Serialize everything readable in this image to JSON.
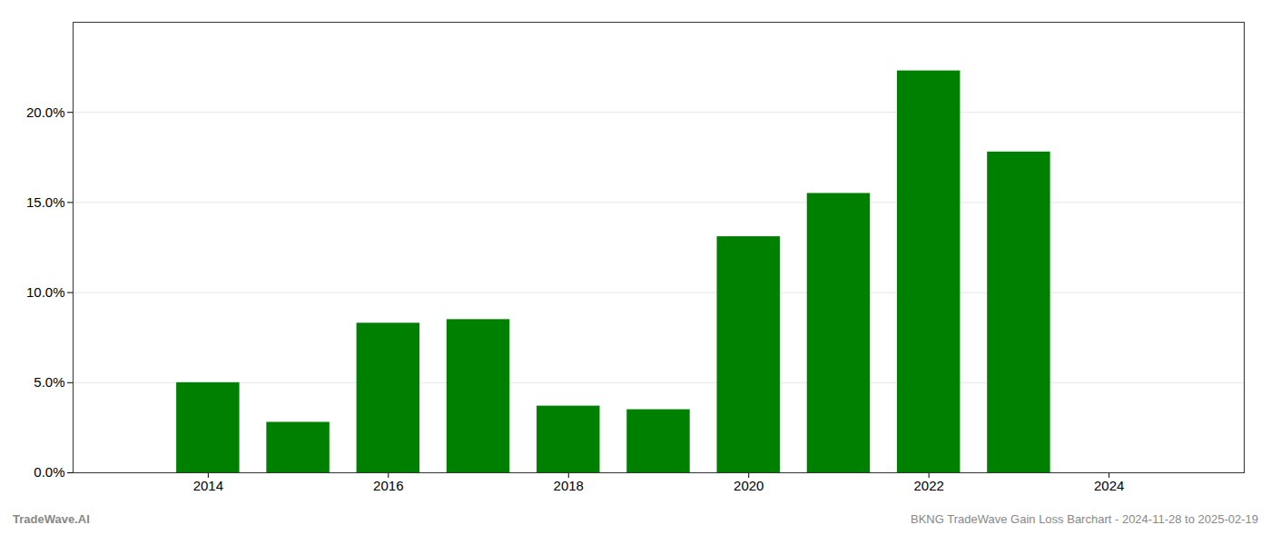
{
  "chart_data": {
    "type": "bar",
    "x": [
      2014,
      2015,
      2016,
      2017,
      2018,
      2019,
      2020,
      2021,
      2022,
      2023
    ],
    "values": [
      0.05,
      0.028,
      0.083,
      0.085,
      0.037,
      0.035,
      0.131,
      0.155,
      0.223,
      0.178
    ],
    "color": "#008000",
    "xlim": [
      2012.5,
      2025.5
    ],
    "xticks": [
      2014,
      2016,
      2018,
      2020,
      2022,
      2024
    ],
    "ylim": [
      0,
      0.25
    ],
    "yticks": [
      {
        "value": 0.0,
        "label": "0.0%"
      },
      {
        "value": 0.05,
        "label": "5.0%"
      },
      {
        "value": 0.1,
        "label": "10.0%"
      },
      {
        "value": 0.15,
        "label": "15.0%"
      },
      {
        "value": 0.2,
        "label": "20.0%"
      }
    ],
    "grid": true,
    "annotations": [
      "TradeWave.AI",
      "BKNG TradeWave Gain Loss Barchart - 2024-11-28 to 2025-02-19"
    ]
  }
}
